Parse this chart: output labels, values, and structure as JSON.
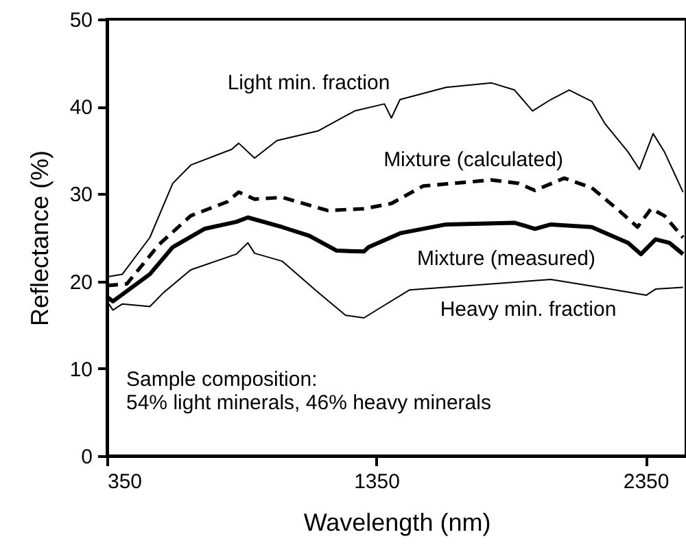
{
  "chart_data": {
    "type": "line",
    "xlabel": "Wavelength (nm)",
    "ylabel": "Reflectance (%)",
    "xlim": [
      350,
      2500
    ],
    "xticks": [
      350,
      1350,
      2350
    ],
    "ylim": [
      0,
      50
    ],
    "yticks": [
      0,
      10,
      20,
      30,
      40,
      50
    ],
    "grid": false,
    "marker": "none",
    "series": [
      {
        "name": "Light min. fraction",
        "color": "#000000",
        "line_style": "solid",
        "x": [
          350,
          407,
          509,
          594,
          661,
          813,
          839,
          898,
          981,
          1133,
          1270,
          1380,
          1406,
          1438,
          1609,
          1778,
          1863,
          1930,
          1998,
          2066,
          2150,
          2200,
          2285,
          2327,
          2378,
          2420,
          2489
        ],
        "values": [
          20.5,
          20.8,
          25,
          31.2,
          33.3,
          35.1,
          35.8,
          34.1,
          36.1,
          37.2,
          39.5,
          40.3,
          38.7,
          40.8,
          42.2,
          42.7,
          41.9,
          39.5,
          40.8,
          41.9,
          40.6,
          38,
          34.8,
          32.8,
          36.9,
          34.8,
          30.2
        ]
      },
      {
        "name": "Mixture (calculated)",
        "color": "#000000",
        "line_style": "dashed",
        "x": [
          350,
          424,
          543,
          661,
          797,
          839,
          898,
          1000,
          1169,
          1304,
          1406,
          1524,
          1778,
          1879,
          1939,
          2048,
          2150,
          2251,
          2320,
          2370,
          2420,
          2489
        ],
        "values": [
          19.5,
          19.7,
          24.2,
          27.5,
          29.1,
          30.2,
          29.4,
          29.6,
          28.1,
          28.3,
          28.9,
          30.9,
          31.6,
          31.2,
          30.4,
          31.8,
          30.7,
          28.1,
          26.2,
          28.3,
          27.5,
          25
        ]
      },
      {
        "name": "Mixture (measured)",
        "color": "#000000",
        "line_style": "solid",
        "x": [
          350,
          372,
          509,
          594,
          712,
          830,
          873,
          1000,
          1101,
          1203,
          1304,
          1321,
          1439,
          1609,
          1863,
          1939,
          1998,
          2150,
          2285,
          2333,
          2387,
          2438,
          2489
        ],
        "values": [
          18.2,
          17.7,
          20.8,
          23.9,
          26,
          26.8,
          27.3,
          26.2,
          25.2,
          23.5,
          23.4,
          23.9,
          25.5,
          26.5,
          26.7,
          26,
          26.5,
          26.2,
          24.4,
          23.1,
          24.8,
          24.4,
          23.1
        ]
      },
      {
        "name": "Heavy min. fraction",
        "color": "#000000",
        "line_style": "solid",
        "x": [
          350,
          372,
          407,
          509,
          560,
          661,
          830,
          873,
          898,
          1000,
          1135,
          1236,
          1304,
          1372,
          1473,
          1693,
          1998,
          2218,
          2353,
          2387,
          2489
        ],
        "values": [
          17.7,
          16.7,
          17.4,
          17.1,
          18.7,
          21.3,
          23.1,
          24.4,
          23.2,
          22.3,
          18.7,
          16.1,
          15.8,
          17.1,
          19,
          19.5,
          20.2,
          19.1,
          18.4,
          19.1,
          19.3
        ]
      }
    ],
    "annotations": [
      "Sample composition:",
      "54% light minerals, 46% heavy minerals"
    ]
  }
}
